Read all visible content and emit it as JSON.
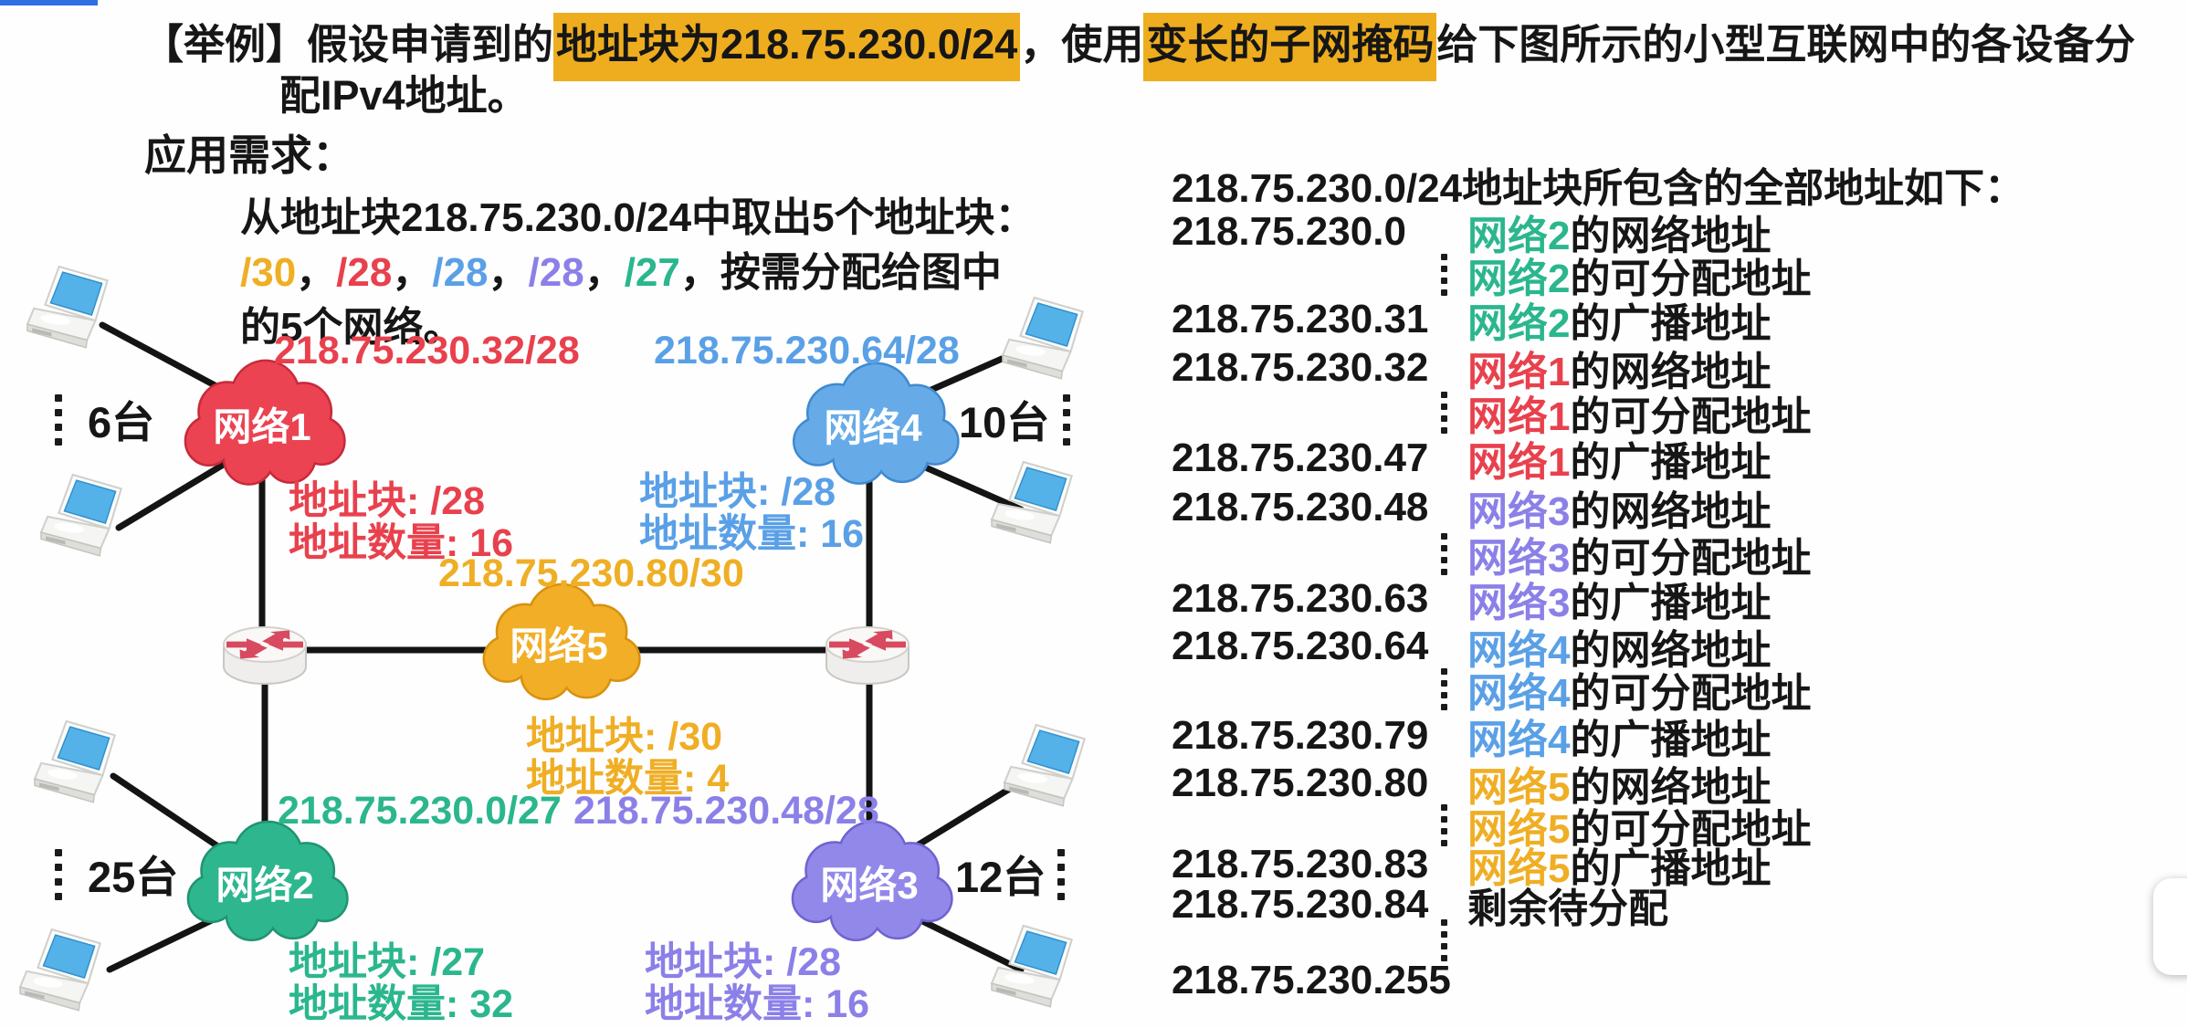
{
  "meta": {
    "top_bar_color": "#2e6fe2",
    "highlight_color": "#eead1f",
    "text_color": "#161616",
    "line_color": "#141414"
  },
  "icons": {
    "laptop": "laptop-icon",
    "router": "router-icon",
    "cloud": "network-cloud",
    "vertical_ellipsis": "vertical-dots-icon"
  },
  "title": {
    "segments": [
      {
        "text": "【举例】假设申请到的",
        "highlight": false
      },
      {
        "text": "地址块为218.75.230.0/24",
        "highlight": true
      },
      {
        "text": "，使用",
        "highlight": false
      },
      {
        "text": "变长的子网掩码",
        "highlight": true
      },
      {
        "text": "给下图所示的小型互联网中的各设备分",
        "highlight": false
      }
    ],
    "line2": "配IPv4地址。"
  },
  "requirements": {
    "heading": "应用需求：",
    "line1": "从地址块218.75.230.0/24中取出5个地址块：",
    "blocks": [
      {
        "text": "/30",
        "color": "#efae24"
      },
      {
        "text": "/28",
        "color": "#e8414d"
      },
      {
        "text": "/28",
        "color": "#5aa0e6"
      },
      {
        "text": "/28",
        "color": "#8b80e8"
      },
      {
        "text": "/27",
        "color": "#2bb68e"
      }
    ],
    "separator": "，",
    "line2_tail": "按需分配给图中",
    "line3": "的5个网络。"
  },
  "networks": [
    {
      "name": "网络1",
      "text_color": "#e8414d",
      "cloud_fill": "#eb4351",
      "cloud_stroke": "#c62b3b",
      "ip": "218.75.230.32/28",
      "block": "地址块: /28",
      "count": "地址数量: 16",
      "hosts": "6台"
    },
    {
      "name": "网络2",
      "text_color": "#2bb68e",
      "cloud_fill": "#2eb68f",
      "cloud_stroke": "#1f9470",
      "ip": "218.75.230.0/27",
      "block": "地址块: /27",
      "count": "地址数量: 32",
      "hosts": "25台"
    },
    {
      "name": "网络3",
      "text_color": "#8b80e8",
      "cloud_fill": "#9288ea",
      "cloud_stroke": "#6f63cf",
      "ip": "218.75.230.48/28",
      "block": "地址块: /28",
      "count": "地址数量: 16",
      "hosts": "12台"
    },
    {
      "name": "网络4",
      "text_color": "#5aa0e6",
      "cloud_fill": "#66abe8",
      "cloud_stroke": "#3f8ad0",
      "ip": "218.75.230.64/28",
      "block": "地址块: /28",
      "count": "地址数量: 16",
      "hosts": "10台"
    },
    {
      "name": "网络5",
      "text_color": "#efae24",
      "cloud_fill": "#f1ae26",
      "cloud_stroke": "#d79110",
      "ip": "218.75.230.80/30",
      "block": "地址块: /30",
      "count": "地址数量: 4",
      "hosts": null
    }
  ],
  "address_table": {
    "heading": "218.75.230.0/24地址块所包含的全部地址如下：",
    "rows": [
      {
        "ip": "218.75.230.0",
        "net": "网络2",
        "desc": "的网络地址"
      },
      {
        "dots": true,
        "net": "网络2",
        "desc": "的可分配地址"
      },
      {
        "ip": "218.75.230.31",
        "net": "网络2",
        "desc": "的广播地址"
      },
      {
        "ip": "218.75.230.32",
        "net": "网络1",
        "desc": "的网络地址"
      },
      {
        "dots": true,
        "net": "网络1",
        "desc": "的可分配地址"
      },
      {
        "ip": "218.75.230.47",
        "net": "网络1",
        "desc": "的广播地址"
      },
      {
        "ip": "218.75.230.48",
        "net": "网络3",
        "desc": "的网络地址"
      },
      {
        "dots": true,
        "net": "网络3",
        "desc": "的可分配地址"
      },
      {
        "ip": "218.75.230.63",
        "net": "网络3",
        "desc": "的广播地址"
      },
      {
        "ip": "218.75.230.64",
        "net": "网络4",
        "desc": "的网络地址"
      },
      {
        "dots": true,
        "net": "网络4",
        "desc": "的可分配地址"
      },
      {
        "ip": "218.75.230.79",
        "net": "网络4",
        "desc": "的广播地址"
      },
      {
        "ip": "218.75.230.80",
        "net": "网络5",
        "desc": "的网络地址"
      },
      {
        "dots": true,
        "net": "网络5",
        "desc": "的可分配地址"
      },
      {
        "ip": "218.75.230.83",
        "net": "网络5",
        "desc": "的广播地址"
      },
      {
        "ip": "218.75.230.84",
        "desc": "剩余待分配"
      },
      {
        "dots": true
      },
      {
        "ip": "218.75.230.255"
      }
    ]
  }
}
